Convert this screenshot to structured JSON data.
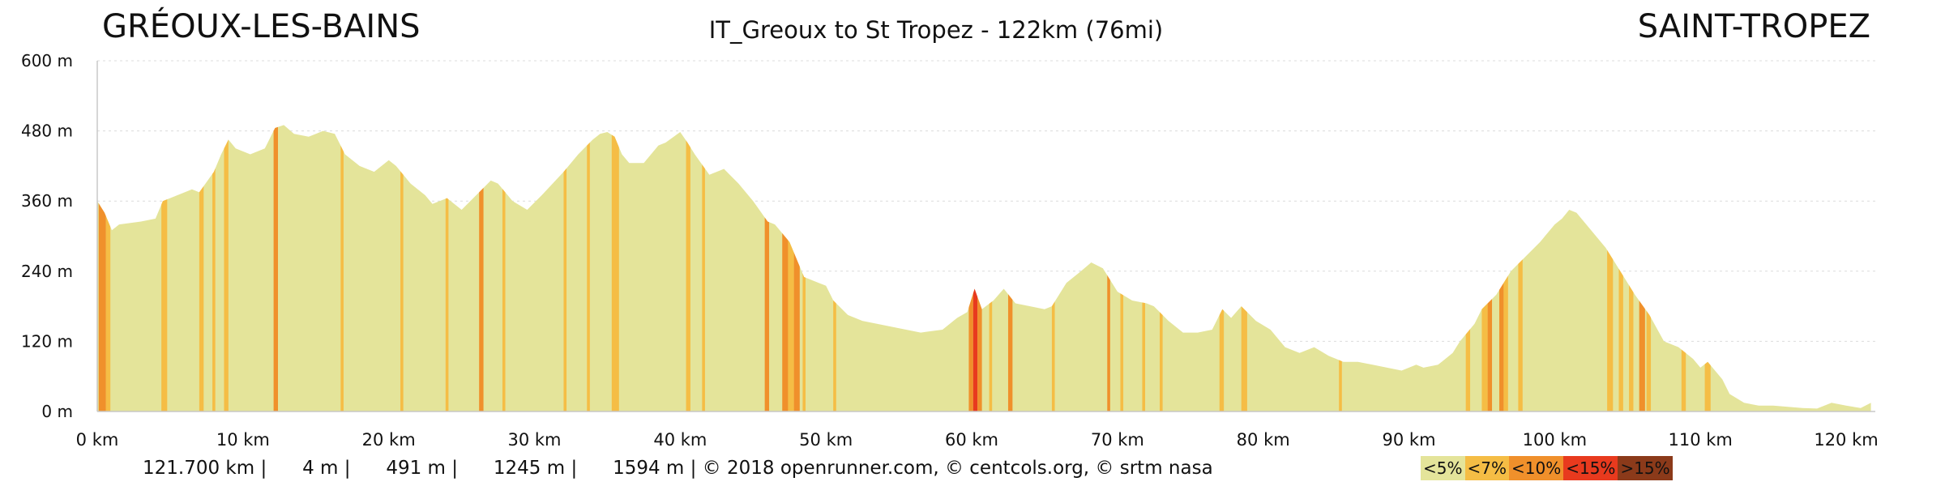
{
  "header": {
    "start": "GRÉOUX-LES-BAINS",
    "title": "IT_Greoux to St Tropez - 122km (76mi)",
    "end": "SAINT-TROPEZ"
  },
  "stats_line": "121.700 km |      4 m |      491 m |      1245 m |      1594 m | © 2018 openrunner.com, © centcols.org, © srtm nasa",
  "colors": {
    "lt5": "#e4e49a",
    "lt7": "#f5bd45",
    "lt10": "#f0902b",
    "lt15": "#e83a1e",
    "gt15": "#8b3a1a"
  },
  "legend": [
    {
      "label": "<5%",
      "color": "#e4e49a"
    },
    {
      "label": "<7%",
      "color": "#f5bd45"
    },
    {
      "label": "<10%",
      "color": "#f0902b"
    },
    {
      "label": "<15%",
      "color": "#e83a1e"
    },
    {
      "label": ">15%",
      "color": "#8b3a1a"
    }
  ],
  "chart_data": {
    "type": "area",
    "x_unit": "km",
    "y_unit": "m",
    "xlim": [
      0,
      122
    ],
    "ylim": [
      0,
      600
    ],
    "x_ticks": [
      0,
      10,
      20,
      30,
      40,
      50,
      60,
      70,
      80,
      90,
      100,
      110,
      120
    ],
    "x_tick_labels": [
      "0 km",
      "10 km",
      "20 km",
      "30 km",
      "40 km",
      "50 km",
      "60 km",
      "70 km",
      "80 km",
      "90 km",
      "100 km",
      "110 km",
      "120 km"
    ],
    "y_ticks": [
      0,
      120,
      240,
      360,
      480,
      600
    ],
    "y_tick_labels": [
      "0 m",
      "120 m",
      "240 m",
      "360 m",
      "480 m",
      "600 m"
    ],
    "grid": true,
    "profile": [
      [
        0,
        360
      ],
      [
        0.5,
        340
      ],
      [
        1,
        310
      ],
      [
        1.5,
        320
      ],
      [
        3,
        325
      ],
      [
        4,
        330
      ],
      [
        4.5,
        360
      ],
      [
        5.5,
        370
      ],
      [
        6.5,
        380
      ],
      [
        7,
        375
      ],
      [
        8,
        410
      ],
      [
        8.5,
        440
      ],
      [
        9,
        465
      ],
      [
        9.5,
        450
      ],
      [
        10.5,
        440
      ],
      [
        11.5,
        450
      ],
      [
        12.2,
        485
      ],
      [
        12.8,
        490
      ],
      [
        13.5,
        475
      ],
      [
        14.5,
        470
      ],
      [
        15.5,
        480
      ],
      [
        16.3,
        475
      ],
      [
        17,
        440
      ],
      [
        18,
        420
      ],
      [
        19,
        410
      ],
      [
        20,
        430
      ],
      [
        20.5,
        420
      ],
      [
        21.5,
        390
      ],
      [
        22.5,
        370
      ],
      [
        23,
        355
      ],
      [
        24,
        365
      ],
      [
        25,
        345
      ],
      [
        26,
        370
      ],
      [
        27,
        395
      ],
      [
        27.5,
        390
      ],
      [
        28.5,
        360
      ],
      [
        29.5,
        345
      ],
      [
        30.5,
        370
      ],
      [
        32,
        410
      ],
      [
        33,
        440
      ],
      [
        34,
        465
      ],
      [
        34.5,
        475
      ],
      [
        35,
        478
      ],
      [
        35.5,
        470
      ],
      [
        36,
        440
      ],
      [
        36.5,
        425
      ],
      [
        37.5,
        425
      ],
      [
        38.5,
        455
      ],
      [
        39,
        460
      ],
      [
        40,
        478
      ],
      [
        40.5,
        460
      ],
      [
        41,
        440
      ],
      [
        42,
        405
      ],
      [
        43,
        415
      ],
      [
        44,
        390
      ],
      [
        45,
        360
      ],
      [
        46,
        325
      ],
      [
        46.5,
        320
      ],
      [
        47.5,
        290
      ],
      [
        48.5,
        230
      ],
      [
        49.5,
        220
      ],
      [
        50,
        215
      ],
      [
        50.5,
        190
      ],
      [
        51.5,
        165
      ],
      [
        52.5,
        155
      ],
      [
        53.5,
        150
      ],
      [
        54.5,
        145
      ],
      [
        55.5,
        140
      ],
      [
        56.5,
        135
      ],
      [
        58,
        140
      ],
      [
        59,
        160
      ],
      [
        59.7,
        170
      ],
      [
        60.2,
        210
      ],
      [
        60.7,
        175
      ],
      [
        61.5,
        190
      ],
      [
        62.2,
        210
      ],
      [
        63,
        185
      ],
      [
        64,
        180
      ],
      [
        65,
        175
      ],
      [
        65.5,
        180
      ],
      [
        66.5,
        220
      ],
      [
        67.5,
        240
      ],
      [
        68.2,
        255
      ],
      [
        69,
        245
      ],
      [
        70,
        205
      ],
      [
        71,
        190
      ],
      [
        72,
        185
      ],
      [
        72.5,
        180
      ],
      [
        73.5,
        155
      ],
      [
        74.5,
        135
      ],
      [
        75.5,
        135
      ],
      [
        76.5,
        140
      ],
      [
        77.2,
        175
      ],
      [
        77.8,
        160
      ],
      [
        78.5,
        180
      ],
      [
        79.5,
        155
      ],
      [
        80.5,
        140
      ],
      [
        81.5,
        110
      ],
      [
        82.5,
        100
      ],
      [
        83.5,
        110
      ],
      [
        84.5,
        95
      ],
      [
        85.5,
        85
      ],
      [
        86.5,
        85
      ],
      [
        87.5,
        80
      ],
      [
        88.5,
        75
      ],
      [
        89.5,
        70
      ],
      [
        90.5,
        80
      ],
      [
        91,
        75
      ],
      [
        92,
        80
      ],
      [
        93,
        100
      ],
      [
        93.5,
        120
      ],
      [
        94.5,
        150
      ],
      [
        95,
        175
      ],
      [
        96,
        200
      ],
      [
        97,
        240
      ],
      [
        98,
        265
      ],
      [
        99,
        290
      ],
      [
        100,
        320
      ],
      [
        100.5,
        330
      ],
      [
        101,
        345
      ],
      [
        101.5,
        340
      ],
      [
        102.5,
        310
      ],
      [
        103.5,
        280
      ],
      [
        104.5,
        240
      ],
      [
        105.5,
        200
      ],
      [
        106.5,
        165
      ],
      [
        107.5,
        120
      ],
      [
        108.5,
        110
      ],
      [
        109.5,
        90
      ],
      [
        110,
        75
      ],
      [
        110.5,
        85
      ],
      [
        111.5,
        55
      ],
      [
        112,
        30
      ],
      [
        113,
        15
      ],
      [
        114,
        10
      ],
      [
        115,
        10
      ],
      [
        116,
        8
      ],
      [
        117,
        6
      ],
      [
        118,
        5
      ],
      [
        119,
        15
      ],
      [
        120,
        10
      ],
      [
        121,
        6
      ],
      [
        121.7,
        15
      ]
    ],
    "gradient_bands": [
      {
        "x0": 0.1,
        "x1": 0.6,
        "grade": "lt10"
      },
      {
        "x0": 0.6,
        "x1": 0.9,
        "grade": "lt7"
      },
      {
        "x0": 4.4,
        "x1": 4.8,
        "grade": "lt7"
      },
      {
        "x0": 7.0,
        "x1": 7.3,
        "grade": "lt7"
      },
      {
        "x0": 7.9,
        "x1": 8.1,
        "grade": "lt7"
      },
      {
        "x0": 8.7,
        "x1": 9.0,
        "grade": "lt7"
      },
      {
        "x0": 12.1,
        "x1": 12.4,
        "grade": "lt10"
      },
      {
        "x0": 16.7,
        "x1": 16.9,
        "grade": "lt7"
      },
      {
        "x0": 20.8,
        "x1": 21.0,
        "grade": "lt7"
      },
      {
        "x0": 23.9,
        "x1": 24.1,
        "grade": "lt7"
      },
      {
        "x0": 26.2,
        "x1": 26.5,
        "grade": "lt10"
      },
      {
        "x0": 27.8,
        "x1": 28.0,
        "grade": "lt7"
      },
      {
        "x0": 32.0,
        "x1": 32.2,
        "grade": "lt7"
      },
      {
        "x0": 33.6,
        "x1": 33.8,
        "grade": "lt7"
      },
      {
        "x0": 35.3,
        "x1": 35.8,
        "grade": "lt7"
      },
      {
        "x0": 40.4,
        "x1": 40.7,
        "grade": "lt7"
      },
      {
        "x0": 41.5,
        "x1": 41.7,
        "grade": "lt7"
      },
      {
        "x0": 45.8,
        "x1": 46.1,
        "grade": "lt10"
      },
      {
        "x0": 47.0,
        "x1": 47.4,
        "grade": "lt10"
      },
      {
        "x0": 47.4,
        "x1": 47.8,
        "grade": "lt7"
      },
      {
        "x0": 47.8,
        "x1": 48.2,
        "grade": "lt10"
      },
      {
        "x0": 48.4,
        "x1": 48.6,
        "grade": "lt7"
      },
      {
        "x0": 50.5,
        "x1": 50.7,
        "grade": "lt7"
      },
      {
        "x0": 59.8,
        "x1": 60.1,
        "grade": "lt10"
      },
      {
        "x0": 60.1,
        "x1": 60.4,
        "grade": "lt15"
      },
      {
        "x0": 60.4,
        "x1": 60.7,
        "grade": "lt10"
      },
      {
        "x0": 61.2,
        "x1": 61.4,
        "grade": "lt7"
      },
      {
        "x0": 62.5,
        "x1": 62.8,
        "grade": "lt10"
      },
      {
        "x0": 65.5,
        "x1": 65.7,
        "grade": "lt7"
      },
      {
        "x0": 69.3,
        "x1": 69.5,
        "grade": "lt10"
      },
      {
        "x0": 70.2,
        "x1": 70.4,
        "grade": "lt7"
      },
      {
        "x0": 71.7,
        "x1": 71.9,
        "grade": "lt7"
      },
      {
        "x0": 72.9,
        "x1": 73.1,
        "grade": "lt7"
      },
      {
        "x0": 77.0,
        "x1": 77.3,
        "grade": "lt7"
      },
      {
        "x0": 78.5,
        "x1": 78.9,
        "grade": "lt7"
      },
      {
        "x0": 85.2,
        "x1": 85.4,
        "grade": "lt7"
      },
      {
        "x0": 93.9,
        "x1": 94.2,
        "grade": "lt7"
      },
      {
        "x0": 95.0,
        "x1": 95.4,
        "grade": "lt7"
      },
      {
        "x0": 95.4,
        "x1": 95.7,
        "grade": "lt10"
      },
      {
        "x0": 96.2,
        "x1": 96.5,
        "grade": "lt10"
      },
      {
        "x0": 96.5,
        "x1": 96.8,
        "grade": "lt7"
      },
      {
        "x0": 97.5,
        "x1": 97.8,
        "grade": "lt7"
      },
      {
        "x0": 103.6,
        "x1": 104.0,
        "grade": "lt7"
      },
      {
        "x0": 104.4,
        "x1": 104.7,
        "grade": "lt7"
      },
      {
        "x0": 105.1,
        "x1": 105.4,
        "grade": "lt7"
      },
      {
        "x0": 105.8,
        "x1": 106.2,
        "grade": "lt10"
      },
      {
        "x0": 106.3,
        "x1": 106.6,
        "grade": "lt7"
      },
      {
        "x0": 108.7,
        "x1": 109.0,
        "grade": "lt7"
      },
      {
        "x0": 110.3,
        "x1": 110.7,
        "grade": "lt7"
      }
    ]
  }
}
